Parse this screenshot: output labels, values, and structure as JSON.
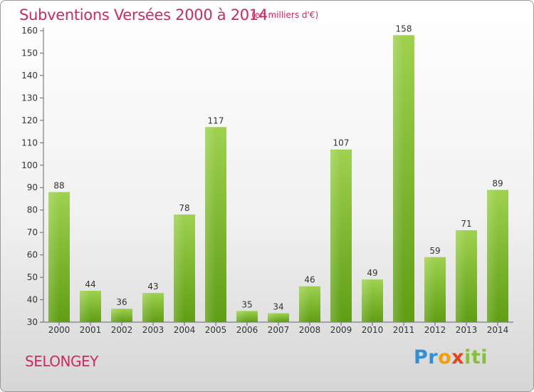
{
  "title": "Subventions Versées 2000 à 2014",
  "subtitle": "(en milliers d'€)",
  "place": "SELONGEY",
  "brand": {
    "letters": [
      "Pr",
      "o",
      "x",
      "iti"
    ],
    "colors": [
      "#2f8fd8",
      "#f5a000",
      "#e8421a",
      "#86c03a"
    ]
  },
  "chart_data": {
    "type": "bar",
    "categories": [
      "2000",
      "2001",
      "2002",
      "2003",
      "2004",
      "2005",
      "2006",
      "2007",
      "2008",
      "2009",
      "2010",
      "2011",
      "2012",
      "2013",
      "2014"
    ],
    "values": [
      88,
      44,
      36,
      43,
      78,
      117,
      35,
      34,
      46,
      107,
      49,
      158,
      59,
      71,
      89
    ],
    "ylim": [
      30,
      160
    ],
    "yticks": [
      30,
      40,
      50,
      60,
      70,
      80,
      90,
      100,
      110,
      120,
      130,
      140,
      150,
      160
    ],
    "grid": false,
    "bar_color": "#7dbb2f",
    "text_color": "#cc2b5e"
  }
}
